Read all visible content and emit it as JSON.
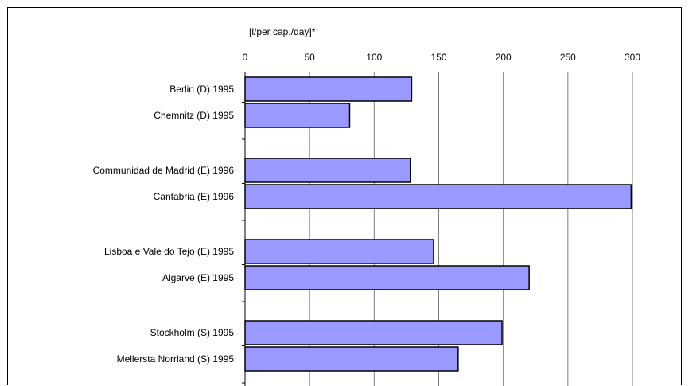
{
  "chart_data": {
    "type": "bar",
    "orientation": "horizontal",
    "axis_label": "[l/per cap./day]*",
    "xlim": [
      0,
      300
    ],
    "xticks": [
      0,
      50,
      100,
      150,
      200,
      250,
      300
    ],
    "grid": true,
    "legend": "none",
    "bar_color": "#9999ff",
    "categories": [
      "Berlin (D) 1995",
      "Chemnitz (D) 1995",
      "Communidad de Madrid (E) 1996",
      "Cantabria (E) 1996",
      "Lisboa e Vale do    Tejo (E) 1995",
      "Algarve (E) 1995",
      "Stockholm (S) 1995",
      "Mellersta  Norrland  (S) 1995"
    ],
    "groups": [
      {
        "items": [
          0,
          1
        ]
      },
      {
        "items": [
          2,
          3
        ]
      },
      {
        "items": [
          4,
          5
        ]
      },
      {
        "items": [
          6,
          7
        ]
      }
    ],
    "values": [
      129,
      81,
      128,
      299,
      146,
      220,
      199,
      165
    ]
  }
}
